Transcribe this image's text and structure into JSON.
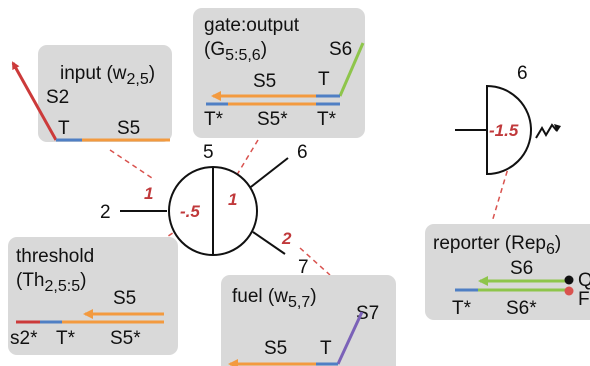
{
  "colors": {
    "box_fill": "#d9d9d9",
    "red": "#cc3a3a",
    "orange": "#f39a3f",
    "blue": "#4f7fc4",
    "green": "#8ec54b",
    "purple": "#7b62b8",
    "dashed": "#d9534f",
    "weight_text": "#c0393b"
  },
  "input": {
    "title": "input (w",
    "sub": "2,5",
    "close": ")",
    "strand": "S2",
    "toehold": "T",
    "domain": "S5"
  },
  "gate": {
    "title": "gate:output",
    "open": "(G",
    "sub": "5:5,6",
    "close": ")",
    "top_strand": "S6",
    "top_toehold": "T",
    "top_domain": "S5",
    "bottom_t1": "T*",
    "bottom_s5": "S5*",
    "bottom_t2": "T*"
  },
  "threshold": {
    "title": "threshold",
    "open": "(Th",
    "sub": "2,5:5",
    "close": ")",
    "top_domain": "S5",
    "bottom_s2": "s2*",
    "bottom_t": "T*",
    "bottom_s5": "S5*"
  },
  "fuel": {
    "title": "fuel (w",
    "sub": "5,7",
    "close": ")",
    "strand": "S7",
    "domain": "S5",
    "toehold": "T"
  },
  "neuron": {
    "input_label": "2",
    "top_label": "5",
    "output_upper": "6",
    "output_lower": "7",
    "threshold_weight": "-.5",
    "input_weight": "1",
    "gate_weight": "1",
    "fuel_weight": "2"
  },
  "reporter_node": {
    "label": "6",
    "weight": "-1.5"
  },
  "reporter": {
    "title": "reporter (Rep",
    "sub": "6",
    "close": ")",
    "top_domain": "S6",
    "bottom_t": "T*",
    "bottom_s6": "S6*",
    "quencher_label": "Q",
    "fluor_label": "F"
  }
}
